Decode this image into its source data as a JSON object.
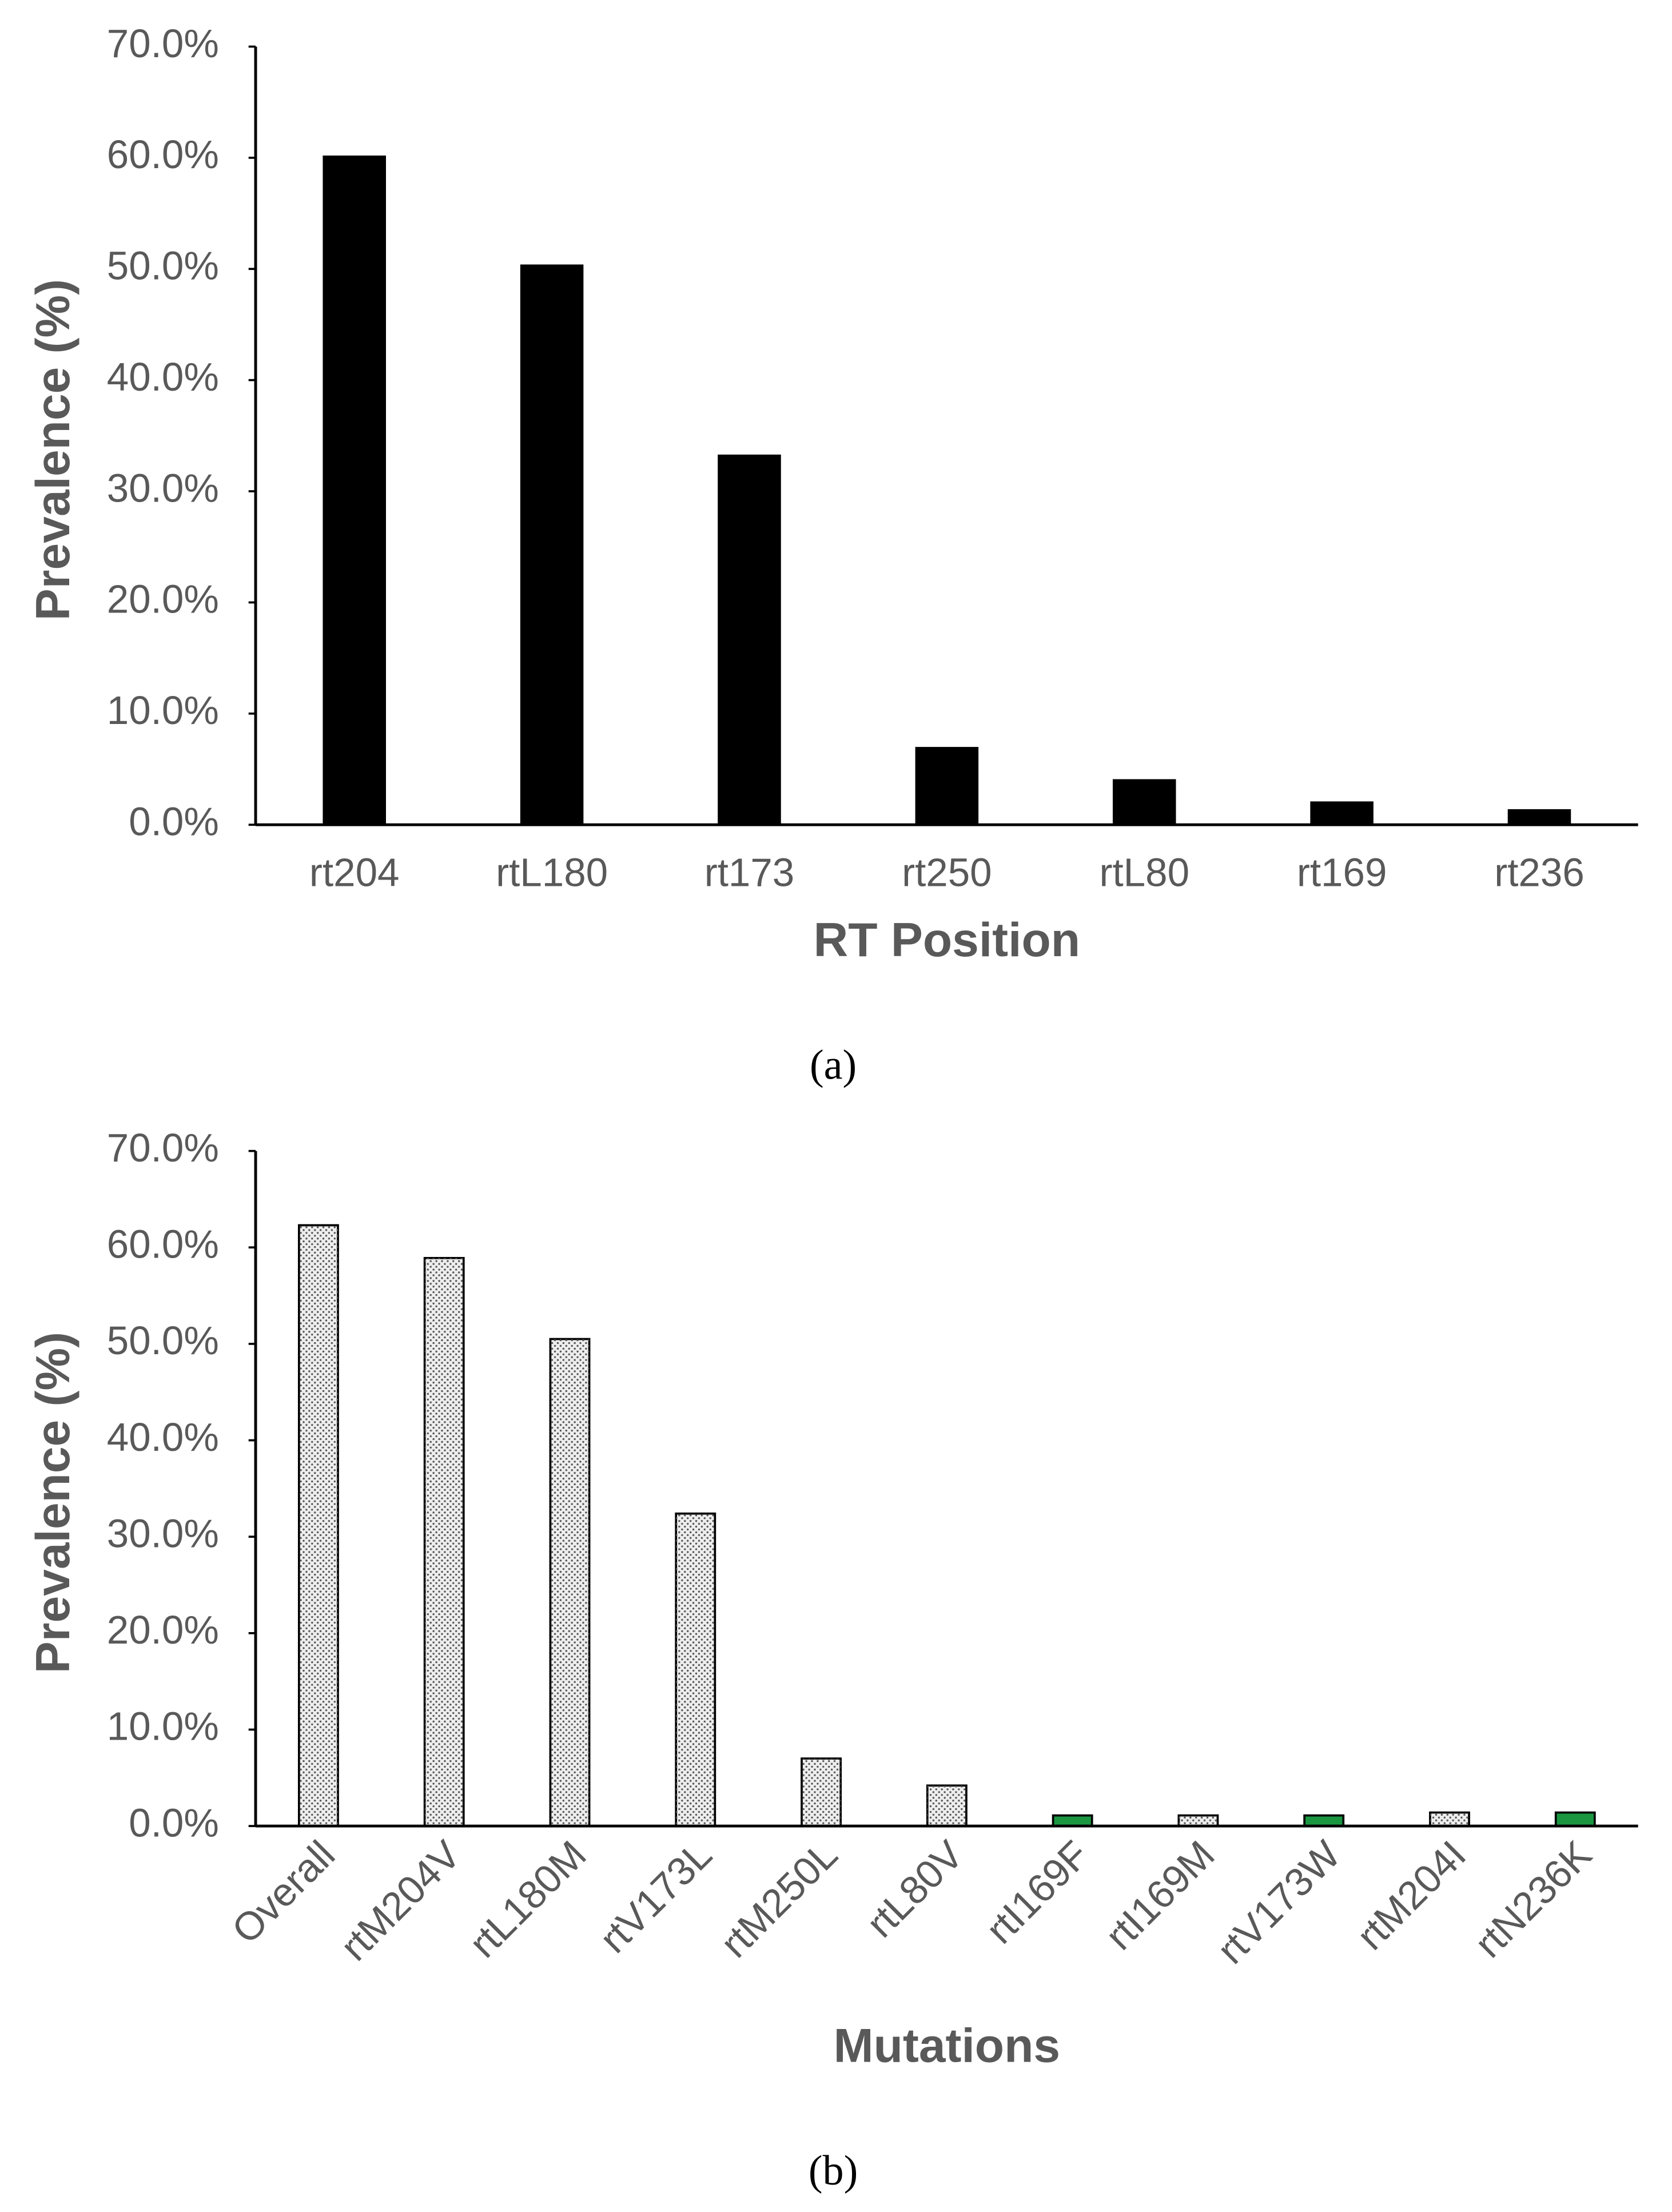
{
  "chart_data": [
    {
      "type": "bar",
      "caption": "(a)",
      "x_label": "RT Position",
      "y_label": "Prevalence (%)",
      "categories": [
        "rt204",
        "rtL180",
        "rt173",
        "rt250",
        "rtL80",
        "rt169",
        "rt236"
      ],
      "values": [
        60.2,
        50.4,
        33.3,
        7.0,
        4.1,
        2.1,
        1.4
      ],
      "color": "#000000",
      "ylim": [
        0,
        70
      ],
      "yticks": [
        {
          "value": 0,
          "label": "0.0%"
        },
        {
          "value": 10,
          "label": "10.0%"
        },
        {
          "value": 20,
          "label": "20.0%"
        },
        {
          "value": 30,
          "label": "30.0%"
        },
        {
          "value": 40,
          "label": "40.0%"
        },
        {
          "value": 50,
          "label": "50.0%"
        },
        {
          "value": 60,
          "label": "60.0%"
        },
        {
          "value": 70,
          "label": "70.0%"
        }
      ],
      "grid": false
    },
    {
      "type": "bar",
      "caption": "(b)",
      "x_label": "Mutations",
      "y_label": "Prevalence (%)",
      "categories": [
        "Overall",
        "rtM204V",
        "rtL180M",
        "rtV173L",
        "rtM250L",
        "rtL80V",
        "rtI169F",
        "rtI169M",
        "rtV173W",
        "rtM204I",
        "rtN236K"
      ],
      "values": [
        62.3,
        58.9,
        50.5,
        32.4,
        7.0,
        4.2,
        1.1,
        1.1,
        1.1,
        1.4,
        1.4
      ],
      "colors": [
        "#eeeeee",
        "#eeeeee",
        "#eeeeee",
        "#eeeeee",
        "#eeeeee",
        "#eeeeee",
        "#1a9641",
        "#eeeeee",
        "#1a9641",
        "#eeeeee",
        "#1a9641"
      ],
      "pattern": "dots",
      "rotated_labels": true,
      "ylim": [
        0,
        70
      ],
      "yticks": [
        {
          "value": 0,
          "label": "0.0%"
        },
        {
          "value": 10,
          "label": "10.0%"
        },
        {
          "value": 20,
          "label": "20.0%"
        },
        {
          "value": 30,
          "label": "30.0%"
        },
        {
          "value": 40,
          "label": "40.0%"
        },
        {
          "value": 50,
          "label": "50.0%"
        },
        {
          "value": 60,
          "label": "60.0%"
        },
        {
          "value": 70,
          "label": "70.0%"
        }
      ],
      "grid": false
    }
  ]
}
